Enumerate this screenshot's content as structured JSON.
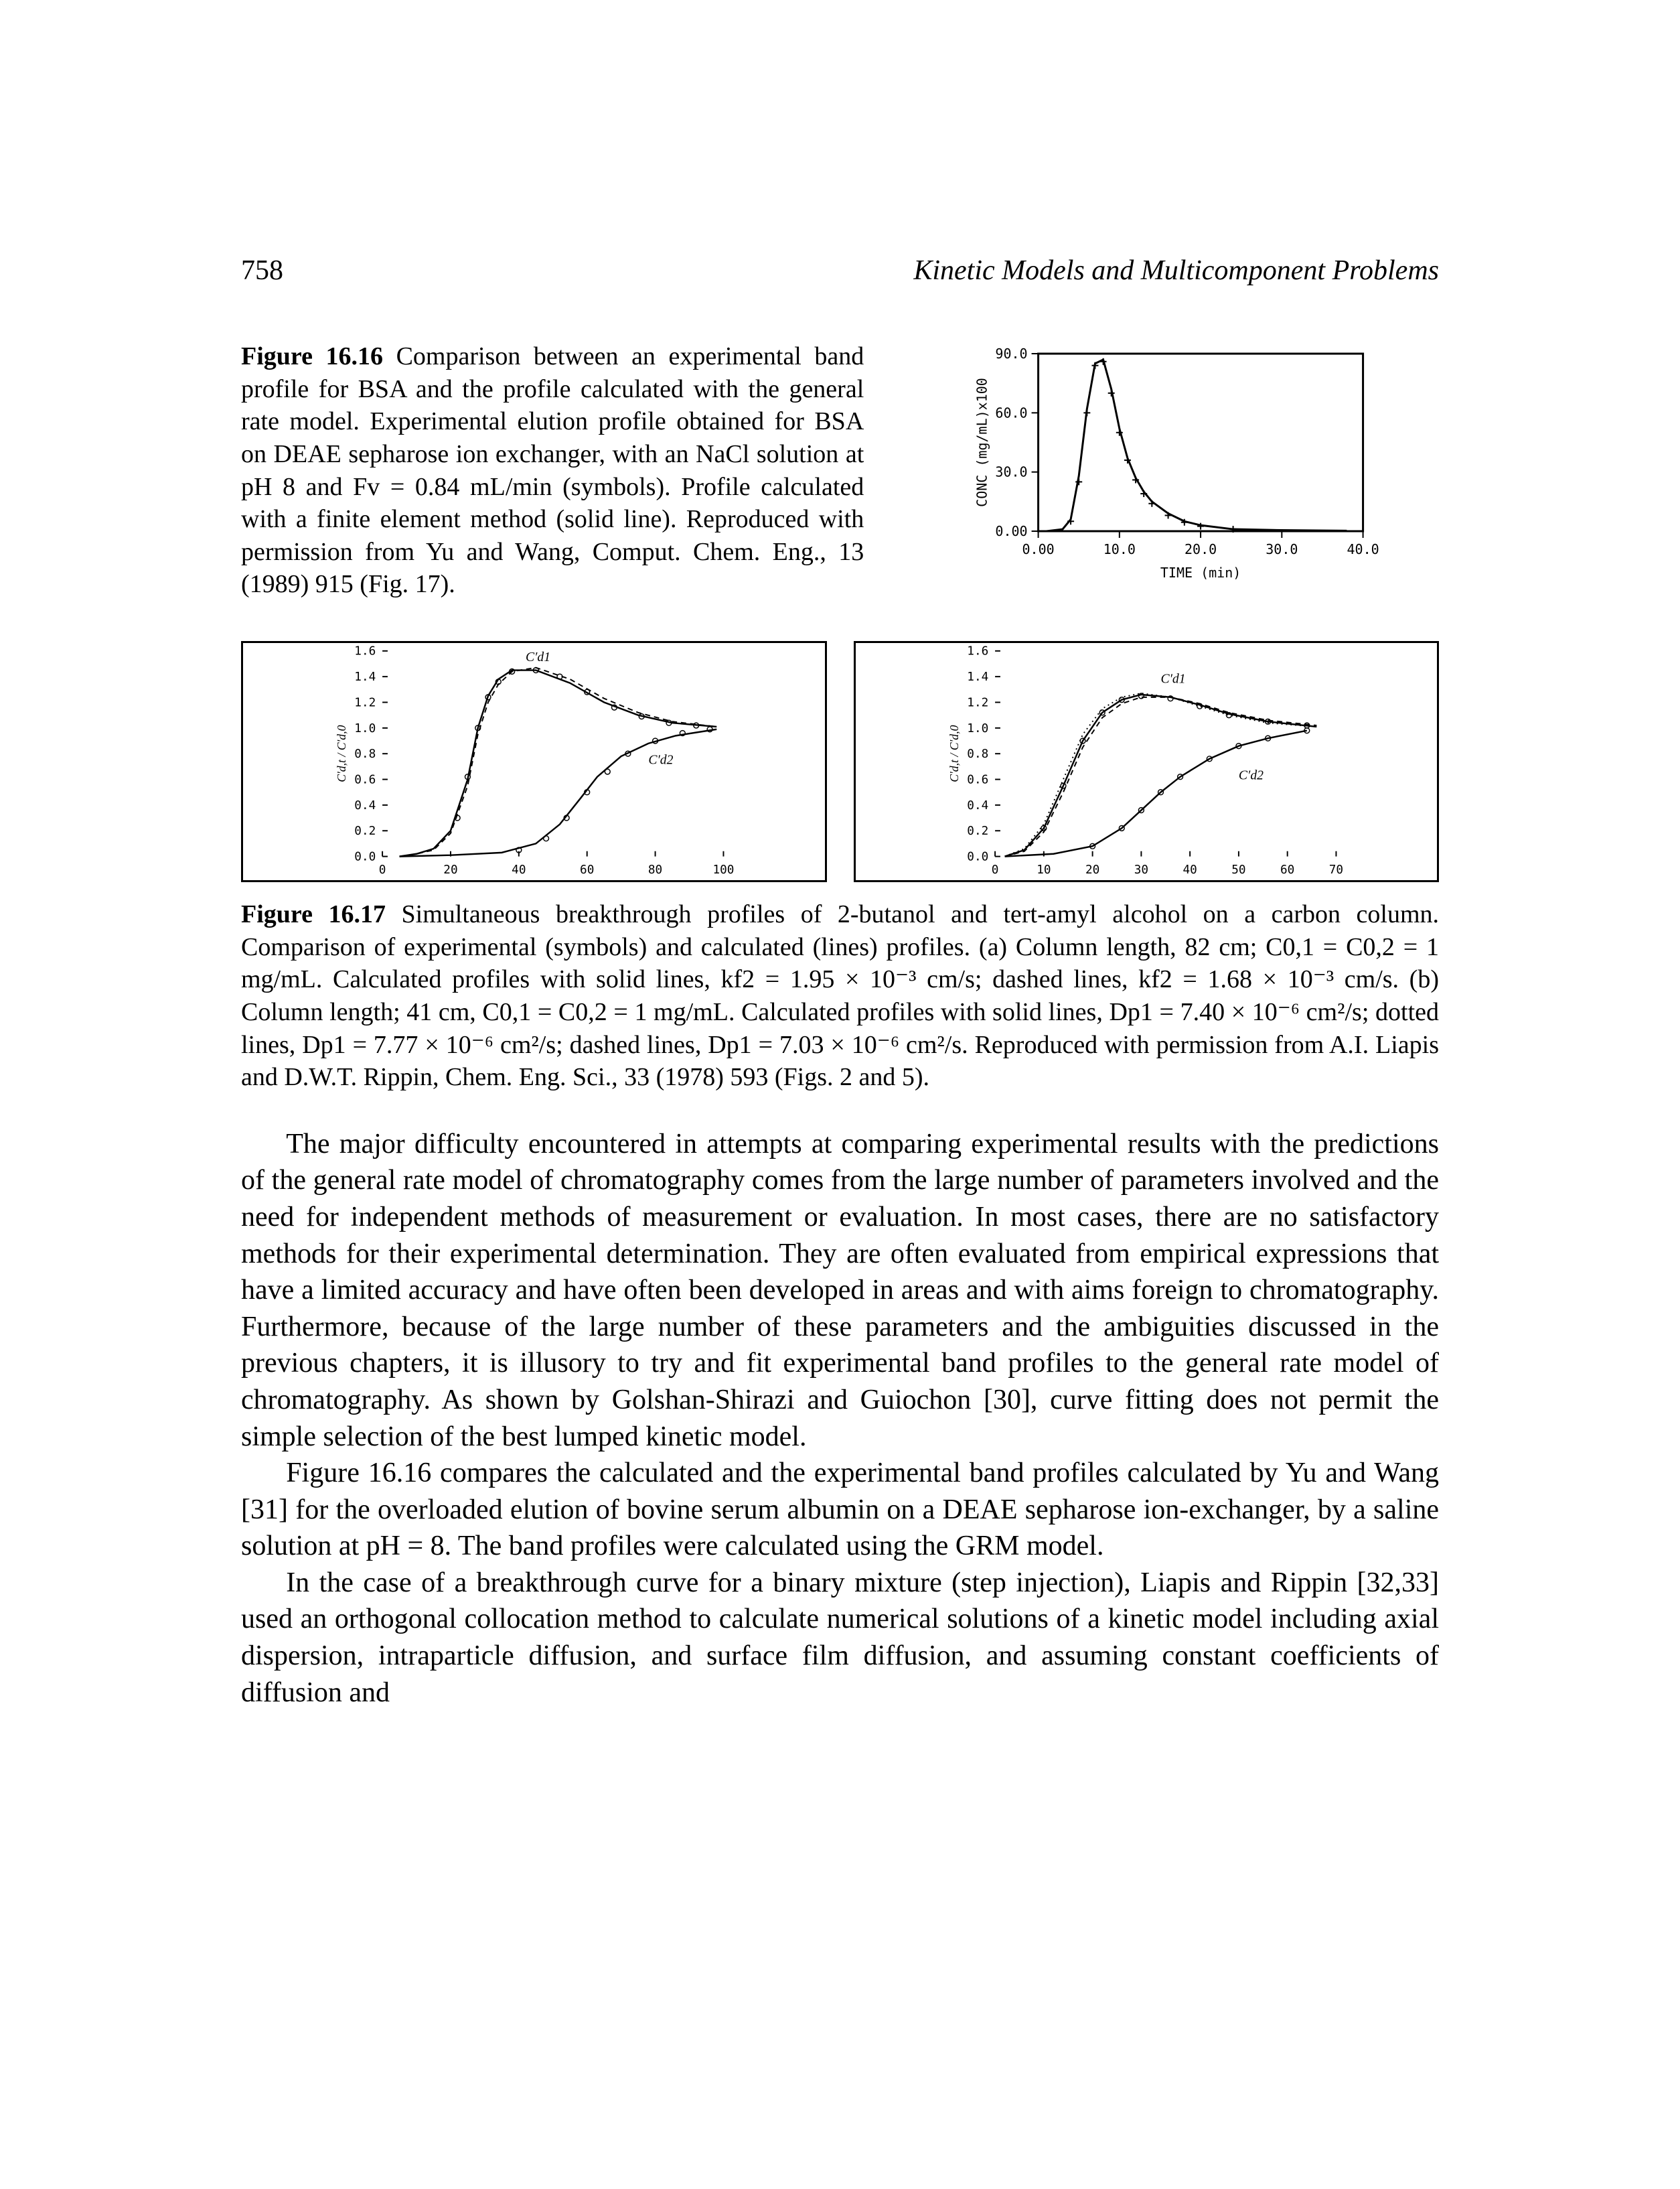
{
  "page": {
    "number": "758",
    "running_head": "Kinetic Models and Multicomponent Problems"
  },
  "figure16": {
    "type": "line",
    "caption_bold": "Figure 16.16",
    "caption_rest": " Comparison between an experimental band profile for BSA and the profile calculated with the general rate model. Experimental elution profile obtained for BSA on DEAE sepharose ion exchanger, with an NaCl solution at pH 8 and Fv = 0.84 mL/min (symbols). Profile calculated with a finite element method (solid line). Reproduced with permission from Yu and Wang, Comput. Chem. Eng., 13 (1989) 915 (Fig. 17).",
    "xlabel": "TIME (min)",
    "ylabel": "CONC (mg/mL)x100",
    "xlim": [
      0,
      40
    ],
    "ylim": [
      0,
      90
    ],
    "xticks": [
      0,
      10,
      20,
      30,
      40
    ],
    "xtick_labels": [
      "0.00",
      "10.0",
      "20.0",
      "30.0",
      "40.0"
    ],
    "yticks": [
      0,
      30,
      60,
      90
    ],
    "ytick_labels": [
      "0.00",
      "30.0",
      "60.0",
      "90.0"
    ],
    "axis_color": "#000000",
    "line_color": "#000000",
    "label_fontsize": 20,
    "peak_x": 7.5,
    "peak_y": 88,
    "calc_points": [
      [
        1,
        0
      ],
      [
        3,
        1
      ],
      [
        4,
        6
      ],
      [
        5,
        28
      ],
      [
        6,
        62
      ],
      [
        7,
        85
      ],
      [
        8,
        87
      ],
      [
        9,
        72
      ],
      [
        10,
        52
      ],
      [
        11,
        37
      ],
      [
        12,
        27
      ],
      [
        13,
        20
      ],
      [
        14,
        15
      ],
      [
        16,
        9
      ],
      [
        18,
        5
      ],
      [
        20,
        3
      ],
      [
        24,
        1
      ],
      [
        30,
        0.5
      ],
      [
        38,
        0.2
      ]
    ],
    "exp_points": [
      [
        4,
        5
      ],
      [
        5,
        25
      ],
      [
        6,
        60
      ],
      [
        7,
        84
      ],
      [
        8,
        86
      ],
      [
        9,
        70
      ],
      [
        10,
        50
      ],
      [
        11,
        36
      ],
      [
        12,
        26
      ],
      [
        13,
        19
      ],
      [
        14,
        14
      ],
      [
        16,
        8
      ],
      [
        18,
        4.5
      ],
      [
        20,
        2.5
      ],
      [
        24,
        1
      ]
    ]
  },
  "figure17": {
    "caption_bold": "Figure 16.17",
    "caption_rest": " Simultaneous breakthrough profiles of 2-butanol and tert-amyl alcohol on a carbon column. Comparison of experimental (symbols) and calculated (lines) profiles. (a) Column length, 82 cm; C0,1 = C0,2 = 1 mg/mL. Calculated profiles with solid lines, kf2 = 1.95 × 10⁻³ cm/s; dashed lines, kf2 = 1.68 × 10⁻³ cm/s. (b) Column length; 41 cm, C0,1 = C0,2 = 1 mg/mL. Calculated profiles with solid lines, Dp1 = 7.40 × 10⁻⁶ cm²/s; dotted lines, Dp1 = 7.77 × 10⁻⁶ cm²/s; dashed lines, Dp1 = 7.03 × 10⁻⁶ cm²/s. Reproduced with permission from A.I. Liapis and D.W.T. Rippin, Chem. Eng. Sci., 33 (1978) 593 (Figs. 2 and 5).",
    "panel_a": {
      "type": "line",
      "ylabel": "C′d,t /C′d,0",
      "ylim": [
        0,
        1.6
      ],
      "xlim": [
        0,
        100
      ],
      "xticks": [
        0,
        20,
        40,
        60,
        80,
        100
      ],
      "yticks": [
        0,
        0.2,
        0.4,
        0.6,
        0.8,
        1.0,
        1.2,
        1.4,
        1.6
      ],
      "axis_color": "#000000",
      "upper_label": "C′d1",
      "lower_label": "C′d2",
      "curve_upper": [
        [
          5,
          0
        ],
        [
          10,
          0.02
        ],
        [
          15,
          0.06
        ],
        [
          20,
          0.2
        ],
        [
          25,
          0.6
        ],
        [
          28,
          1.0
        ],
        [
          31,
          1.25
        ],
        [
          34,
          1.38
        ],
        [
          38,
          1.45
        ],
        [
          45,
          1.45
        ],
        [
          55,
          1.35
        ],
        [
          65,
          1.2
        ],
        [
          75,
          1.1
        ],
        [
          85,
          1.04
        ],
        [
          98,
          1.01
        ]
      ],
      "curve_upper_dash": [
        [
          5,
          0
        ],
        [
          10,
          0.02
        ],
        [
          15,
          0.05
        ],
        [
          20,
          0.18
        ],
        [
          25,
          0.55
        ],
        [
          28,
          0.95
        ],
        [
          31,
          1.2
        ],
        [
          34,
          1.34
        ],
        [
          38,
          1.44
        ],
        [
          45,
          1.47
        ],
        [
          55,
          1.38
        ],
        [
          65,
          1.23
        ],
        [
          75,
          1.12
        ],
        [
          85,
          1.05
        ],
        [
          98,
          1.01
        ]
      ],
      "curve_lower": [
        [
          5,
          0
        ],
        [
          20,
          0.01
        ],
        [
          35,
          0.03
        ],
        [
          45,
          0.1
        ],
        [
          52,
          0.25
        ],
        [
          58,
          0.45
        ],
        [
          63,
          0.62
        ],
        [
          70,
          0.78
        ],
        [
          78,
          0.88
        ],
        [
          86,
          0.94
        ],
        [
          98,
          0.99
        ]
      ],
      "exp_upper": [
        [
          22,
          0.3
        ],
        [
          25,
          0.62
        ],
        [
          28,
          1.0
        ],
        [
          31,
          1.24
        ],
        [
          34,
          1.36
        ],
        [
          38,
          1.44
        ],
        [
          45,
          1.45
        ],
        [
          52,
          1.4
        ],
        [
          60,
          1.28
        ],
        [
          68,
          1.16
        ],
        [
          76,
          1.09
        ],
        [
          84,
          1.04
        ],
        [
          92,
          1.02
        ]
      ],
      "exp_lower": [
        [
          40,
          0.05
        ],
        [
          48,
          0.14
        ],
        [
          54,
          0.3
        ],
        [
          60,
          0.5
        ],
        [
          66,
          0.66
        ],
        [
          72,
          0.8
        ],
        [
          80,
          0.9
        ],
        [
          88,
          0.96
        ],
        [
          96,
          0.99
        ]
      ]
    },
    "panel_b": {
      "type": "line",
      "ylabel": "C′d,t /C′d,0",
      "ylim": [
        0,
        1.6
      ],
      "xlim": [
        0,
        70
      ],
      "xticks": [
        0,
        10,
        20,
        30,
        40,
        50,
        60,
        70
      ],
      "yticks": [
        0,
        0.2,
        0.4,
        0.6,
        0.8,
        1.0,
        1.2,
        1.4,
        1.6
      ],
      "axis_color": "#000000",
      "upper_label": "C′d1",
      "lower_label": "C′d2",
      "curve_upper": [
        [
          2,
          0
        ],
        [
          6,
          0.05
        ],
        [
          10,
          0.22
        ],
        [
          14,
          0.55
        ],
        [
          18,
          0.9
        ],
        [
          22,
          1.12
        ],
        [
          26,
          1.22
        ],
        [
          30,
          1.26
        ],
        [
          36,
          1.24
        ],
        [
          42,
          1.18
        ],
        [
          48,
          1.11
        ],
        [
          56,
          1.05
        ],
        [
          66,
          1.01
        ]
      ],
      "curve_upper_dash": [
        [
          2,
          0
        ],
        [
          6,
          0.04
        ],
        [
          10,
          0.19
        ],
        [
          14,
          0.5
        ],
        [
          18,
          0.85
        ],
        [
          22,
          1.08
        ],
        [
          26,
          1.19
        ],
        [
          30,
          1.24
        ],
        [
          36,
          1.24
        ],
        [
          42,
          1.19
        ],
        [
          48,
          1.12
        ],
        [
          56,
          1.06
        ],
        [
          66,
          1.02
        ]
      ],
      "curve_upper_dot": [
        [
          2,
          0
        ],
        [
          6,
          0.06
        ],
        [
          10,
          0.25
        ],
        [
          14,
          0.6
        ],
        [
          18,
          0.95
        ],
        [
          22,
          1.15
        ],
        [
          26,
          1.24
        ],
        [
          30,
          1.27
        ],
        [
          36,
          1.24
        ],
        [
          42,
          1.17
        ],
        [
          48,
          1.1
        ],
        [
          56,
          1.04
        ],
        [
          66,
          1.01
        ]
      ],
      "curve_lower": [
        [
          2,
          0
        ],
        [
          12,
          0.02
        ],
        [
          20,
          0.08
        ],
        [
          26,
          0.22
        ],
        [
          30,
          0.36
        ],
        [
          34,
          0.5
        ],
        [
          38,
          0.62
        ],
        [
          44,
          0.76
        ],
        [
          50,
          0.86
        ],
        [
          56,
          0.92
        ],
        [
          64,
          0.98
        ]
      ],
      "exp_upper": [
        [
          10,
          0.22
        ],
        [
          14,
          0.55
        ],
        [
          18,
          0.9
        ],
        [
          22,
          1.12
        ],
        [
          26,
          1.22
        ],
        [
          30,
          1.25
        ],
        [
          36,
          1.23
        ],
        [
          42,
          1.17
        ],
        [
          48,
          1.1
        ],
        [
          56,
          1.05
        ],
        [
          64,
          1.02
        ]
      ],
      "exp_lower": [
        [
          20,
          0.08
        ],
        [
          26,
          0.22
        ],
        [
          30,
          0.36
        ],
        [
          34,
          0.5
        ],
        [
          38,
          0.62
        ],
        [
          44,
          0.76
        ],
        [
          50,
          0.86
        ],
        [
          56,
          0.92
        ],
        [
          64,
          0.98
        ]
      ]
    }
  },
  "body": {
    "p1": "The major difficulty encountered in attempts at comparing experimental results with the predictions of the general rate model of chromatography comes from the large number of parameters involved and the need for independent methods of measurement or evaluation. In most cases, there are no satisfactory methods for their experimental determination. They are often evaluated from empirical expressions that have a limited accuracy and have often been developed in areas and with aims foreign to chromatography. Furthermore, because of the large number of these parameters and the ambiguities discussed in the previous chapters, it is illusory to try and fit experimental band profiles to the general rate model of chromatography. As shown by Golshan-Shirazi and Guiochon [30], curve fitting does not permit the simple selection of the best lumped kinetic model.",
    "p2": "Figure 16.16 compares the calculated and the experimental band profiles calculated by Yu and Wang [31] for the overloaded elution of bovine serum albumin on a DEAE sepharose ion-exchanger, by a saline solution at pH = 8. The band profiles were calculated using the GRM model.",
    "p3": "In the case of a breakthrough curve for a binary mixture (step injection), Liapis and Rippin [32,33] used an orthogonal collocation method to calculate numerical solutions of a kinetic model including axial dispersion, intraparticle diffusion, and surface film diffusion, and assuming constant coefficients of diffusion and"
  }
}
